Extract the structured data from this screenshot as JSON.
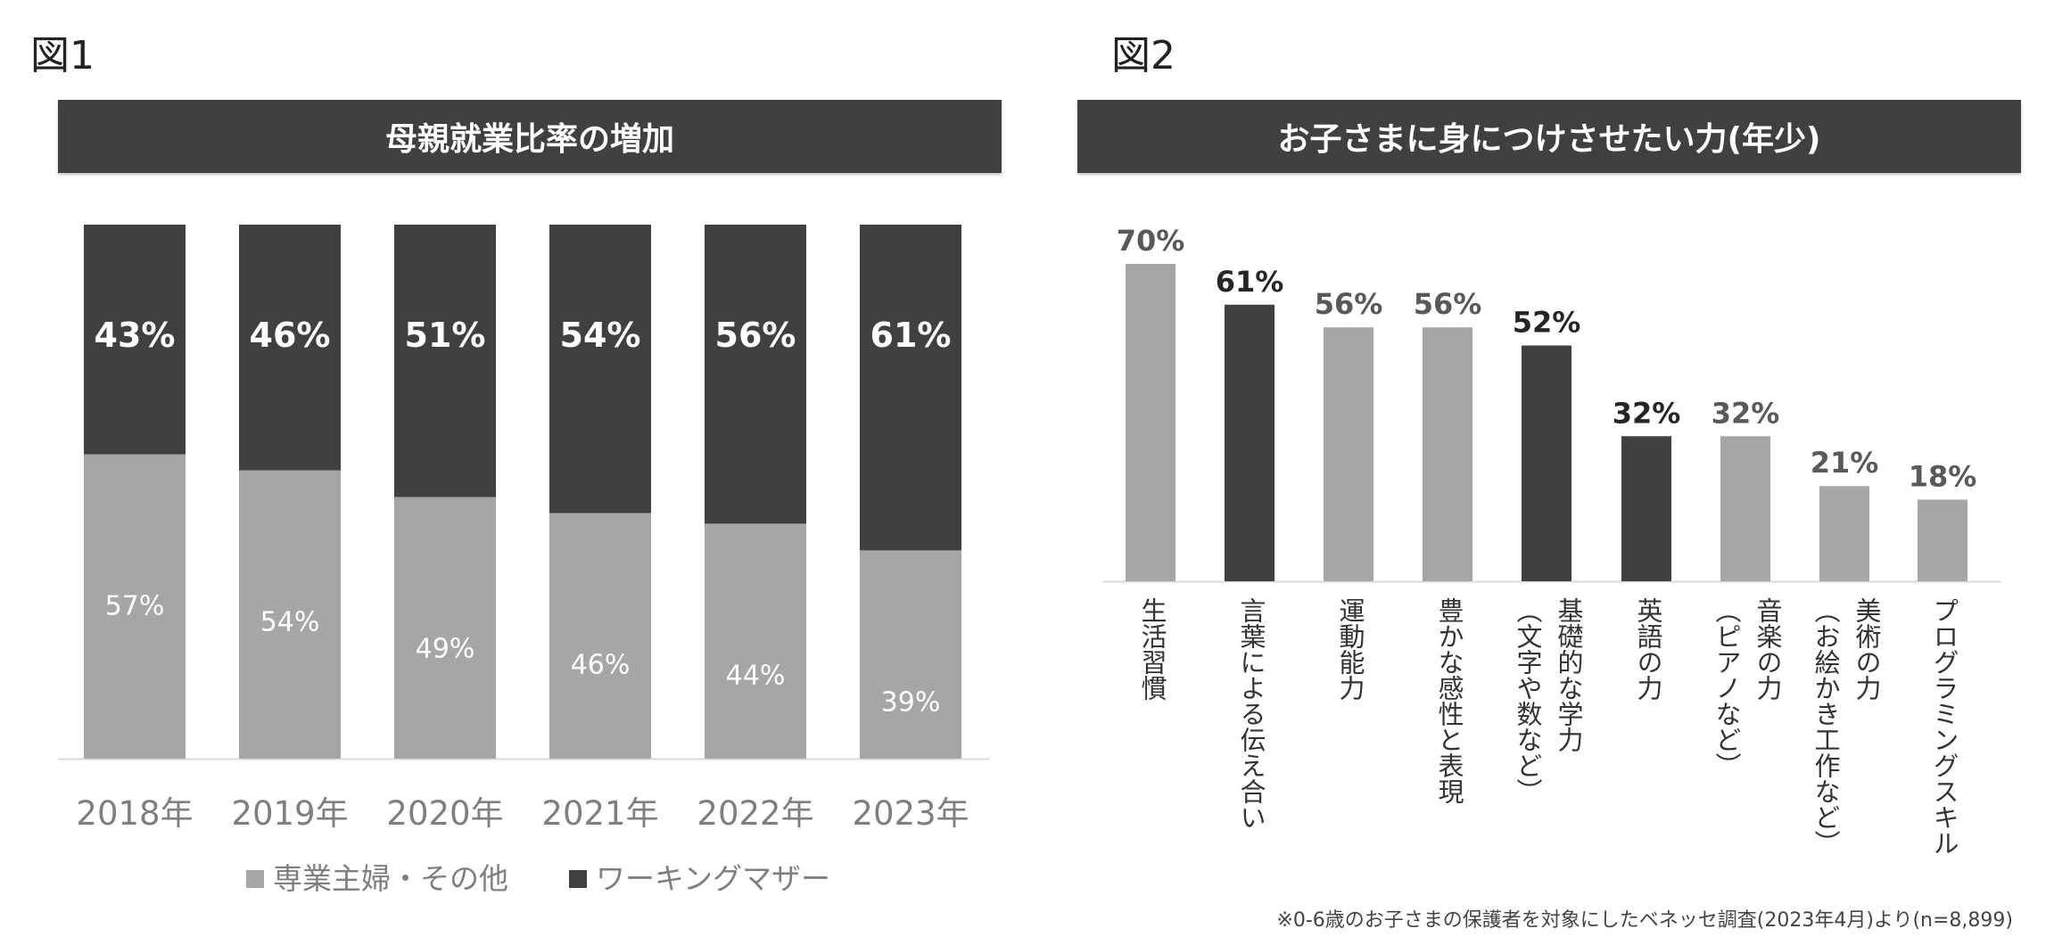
{
  "figure1": {
    "label": "図1",
    "title": "母親就業比率の増加",
    "chart_data": {
      "type": "bar",
      "stacked": true,
      "categories": [
        "2018年",
        "2019年",
        "2020年",
        "2021年",
        "2022年",
        "2023年"
      ],
      "series": [
        {
          "name": "専業主婦・その他",
          "values": [
            57,
            54,
            49,
            46,
            44,
            39
          ],
          "labels": [
            "57%",
            "54%",
            "49%",
            "46%",
            "44%",
            "39%"
          ],
          "color": "#a6a6a6"
        },
        {
          "name": "ワーキングマザー",
          "values": [
            43,
            46,
            51,
            54,
            56,
            61
          ],
          "labels": [
            "43%",
            "46%",
            "51%",
            "54%",
            "56%",
            "61%"
          ],
          "color": "#404040"
        }
      ],
      "ylim": [
        0,
        100
      ],
      "legend_position": "bottom",
      "grid": false
    },
    "legend": [
      {
        "label": "専業主婦・その他",
        "color": "#a6a6a6"
      },
      {
        "label": "ワーキングマザー",
        "color": "#404040"
      }
    ]
  },
  "figure2": {
    "label": "図2",
    "title": "お子さまに身につけさせたい力(年少)",
    "chart_data": {
      "type": "bar",
      "categories": [
        "生活習慣",
        "言葉による伝え合い",
        "運動能力",
        "豊かな感性と表現",
        "基礎的な学力 (文字や数など)",
        "英語の力",
        "音楽の力 (ピアノなど)",
        "美術の力 (お絵かき工作など)",
        "プログラミングスキル"
      ],
      "category_lines": [
        [
          "生活習慣"
        ],
        [
          "言葉による伝え合い"
        ],
        [
          "運動能力"
        ],
        [
          "豊かな感性と表現"
        ],
        [
          "基礎的な学力",
          "（文字や数など）"
        ],
        [
          "英語の力"
        ],
        [
          "音楽の力",
          "（ピアノなど）"
        ],
        [
          "美術の力",
          "（お絵かき工作など）"
        ],
        [
          "プログラミングスキル"
        ]
      ],
      "values": [
        70,
        61,
        56,
        56,
        52,
        32,
        32,
        21,
        18
      ],
      "labels": [
        "70%",
        "61%",
        "56%",
        "56%",
        "52%",
        "32%",
        "32%",
        "21%",
        "18%"
      ],
      "colors": [
        "#a6a6a6",
        "#404040",
        "#a6a6a6",
        "#a6a6a6",
        "#404040",
        "#404040",
        "#a6a6a6",
        "#a6a6a6",
        "#a6a6a6"
      ],
      "label_colors": [
        "#595959",
        "#262626",
        "#595959",
        "#595959",
        "#262626",
        "#262626",
        "#595959",
        "#595959",
        "#595959"
      ],
      "ylim": [
        0,
        80
      ],
      "grid": false
    }
  },
  "footnote": "※0-6歳のお子さまの保護者を対象にしたベネッセ調査(2023年4月)より(n=8,899)"
}
